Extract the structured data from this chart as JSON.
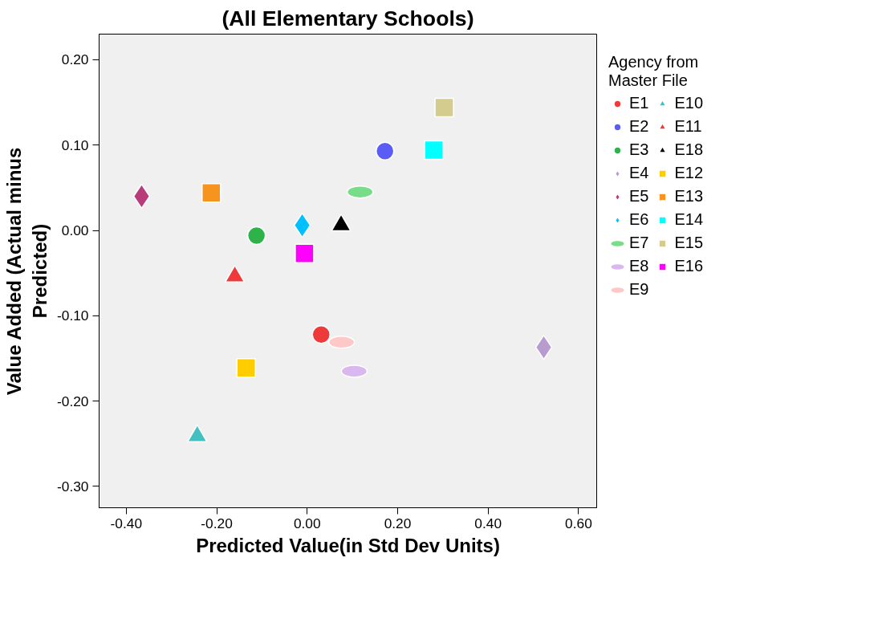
{
  "chart_data": {
    "type": "scatter",
    "title": "(All Elementary Schools)",
    "xlabel": "Predicted Value(in Std Dev Units)",
    "ylabel": "Value Added (Actual minus\nPredicted)",
    "legend_title": "Agency from\nMaster File",
    "legend": "right",
    "grid": false,
    "xlim": [
      -0.46,
      0.64
    ],
    "ylim": [
      -0.325,
      0.23
    ],
    "xticks": [
      {
        "value": -0.4,
        "label": "-0.40"
      },
      {
        "value": -0.2,
        "label": "-0.20"
      },
      {
        "value": 0,
        "label": "0.00"
      },
      {
        "value": 0.2,
        "label": "0.20"
      },
      {
        "value": 0.4,
        "label": "0.40"
      },
      {
        "value": 0.6,
        "label": "0.60"
      }
    ],
    "yticks": [
      {
        "value": -0.3,
        "label": "-0.30"
      },
      {
        "value": -0.2,
        "label": "-0.20"
      },
      {
        "value": -0.1,
        "label": "-0.10"
      },
      {
        "value": 0,
        "label": "0.00"
      },
      {
        "value": 0.1,
        "label": "0.10"
      },
      {
        "value": 0.2,
        "label": "0.20"
      }
    ],
    "series": [
      {
        "name": "E1",
        "color": "#ee3a3a",
        "marker": "circle",
        "x": [
          0.031
        ],
        "values": [
          -0.122
        ]
      },
      {
        "name": "E2",
        "color": "#5b5bf5",
        "marker": "circle",
        "x": [
          0.172
        ],
        "values": [
          0.093
        ]
      },
      {
        "name": "E3",
        "color": "#2db34a",
        "marker": "circle",
        "x": [
          -0.112
        ],
        "values": [
          -0.006
        ]
      },
      {
        "name": "E4",
        "color": "#b89cd0",
        "marker": "diamond",
        "x": [
          0.523
        ],
        "values": [
          -0.137
        ]
      },
      {
        "name": "E5",
        "color": "#b83c7a",
        "marker": "diamond",
        "x": [
          -0.366
        ],
        "values": [
          0.04
        ]
      },
      {
        "name": "E6",
        "color": "#00c0ff",
        "marker": "diamond",
        "x": [
          -0.011
        ],
        "values": [
          0.006
        ]
      },
      {
        "name": "E7",
        "color": "#77dd88",
        "x": [
          0.117
        ],
        "values": [
          0.045
        ]
      },
      {
        "name": "E8",
        "color": "#d9b8f0",
        "x": [
          0.104
        ],
        "values": [
          -0.165
        ]
      },
      {
        "name": "E9",
        "color": "#ffc8c8",
        "x": [
          0.076
        ],
        "values": [
          -0.131
        ]
      },
      {
        "name": "E10",
        "color": "#45c0c0",
        "marker": "triangle",
        "x": [
          -0.243
        ],
        "values": [
          -0.241
        ]
      },
      {
        "name": "E11",
        "color": "#ee3a3a",
        "marker": "triangle",
        "x": [
          -0.16
        ],
        "values": [
          -0.054
        ]
      },
      {
        "name": "E18",
        "color": "#000000",
        "marker": "triangle",
        "x": [
          0.075
        ],
        "values": [
          0.006
        ]
      },
      {
        "name": "E12",
        "color": "#ffcc00",
        "marker": "square",
        "x": [
          -0.135
        ],
        "values": [
          -0.161
        ]
      },
      {
        "name": "E13",
        "color": "#f7941d",
        "marker": "square",
        "x": [
          -0.212
        ],
        "values": [
          0.044
        ]
      },
      {
        "name": "E14",
        "color": "#00ffff",
        "marker": "square",
        "x": [
          0.28
        ],
        "values": [
          0.094
        ]
      },
      {
        "name": "E15",
        "color": "#d4cc8e",
        "marker": "square",
        "x": [
          0.303
        ],
        "values": [
          0.144
        ]
      },
      {
        "name": "E16",
        "color": "#ff00ff",
        "marker": "square",
        "x": [
          -0.006
        ],
        "values": [
          -0.027
        ]
      }
    ]
  }
}
